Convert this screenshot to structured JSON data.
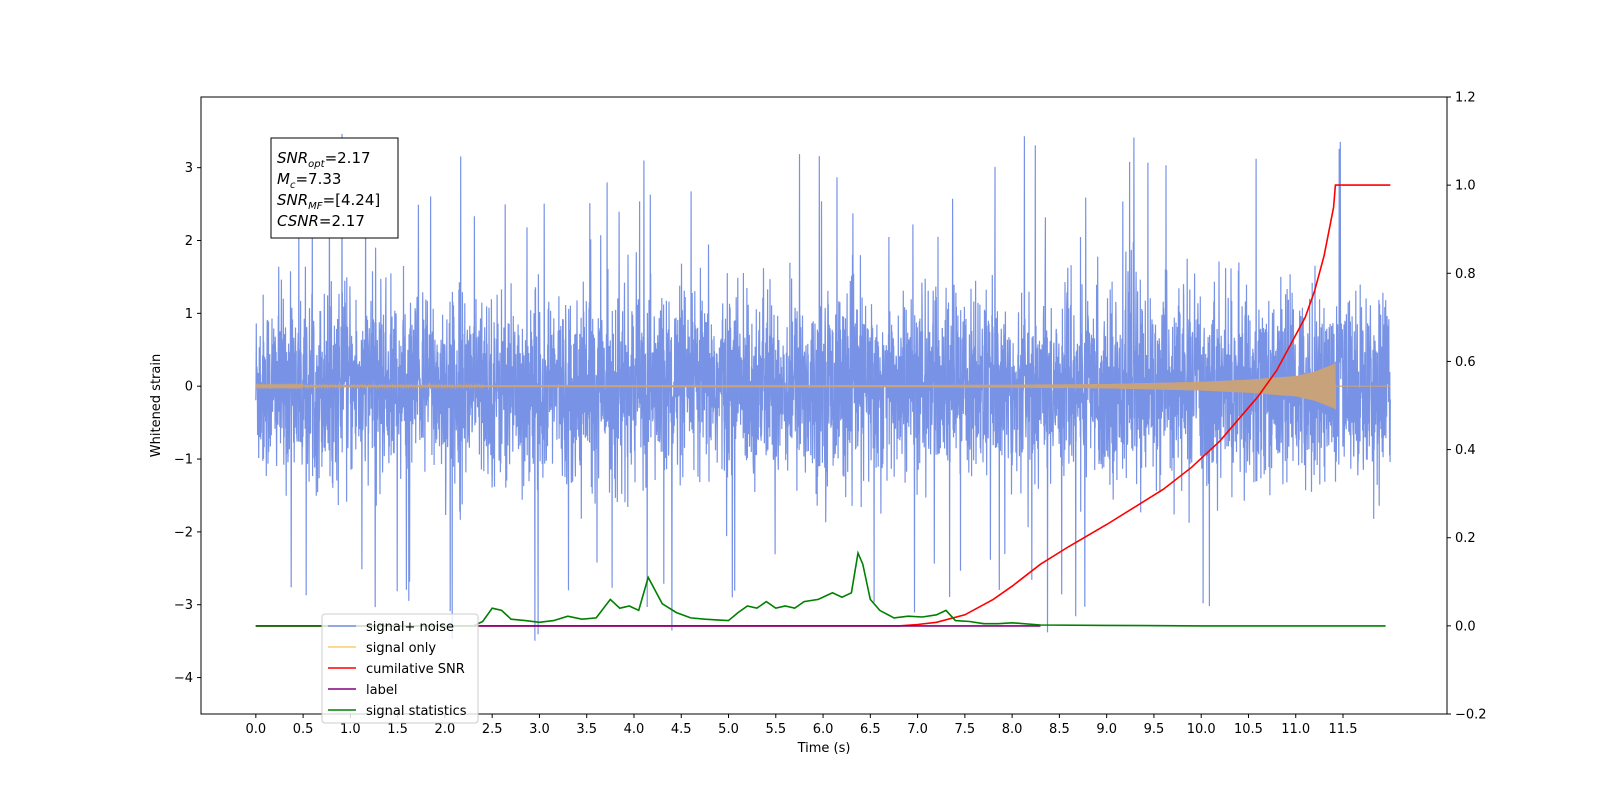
{
  "chart_data": {
    "type": "line",
    "title": "",
    "xlabel": "Time (s)",
    "ylabel": "Whitened strain",
    "ylabel_right": "",
    "xlim": [
      -0.58,
      12.6
    ],
    "ylim": [
      -4.5,
      3.97
    ],
    "ylim_right": [
      -0.2,
      1.2
    ],
    "x_ticks": [
      0.0,
      0.5,
      1.0,
      1.5,
      2.0,
      2.5,
      3.0,
      3.5,
      4.0,
      4.5,
      5.0,
      5.5,
      6.0,
      6.5,
      7.0,
      7.5,
      8.0,
      8.5,
      9.0,
      9.5,
      10.0,
      10.5,
      11.0,
      11.5
    ],
    "x_tick_labels": [
      "0.0",
      "0.5",
      "1.0",
      "1.5",
      "2.0",
      "2.5",
      "3.0",
      "3.5",
      "4.0",
      "4.5",
      "5.0",
      "5.5",
      "6.0",
      "6.5",
      "7.0",
      "7.5",
      "8.0",
      "8.5",
      "9.0",
      "9.5",
      "10.0",
      "10.5",
      "11.0",
      "11.5"
    ],
    "y_ticks": [
      -4,
      -3,
      -2,
      -1,
      0,
      1,
      2,
      3
    ],
    "y_tick_labels": [
      "−4",
      "−3",
      "−2",
      "−1",
      "0",
      "1",
      "2",
      "3"
    ],
    "y_ticks_right": [
      -0.2,
      0.0,
      0.2,
      0.4,
      0.6,
      0.8,
      1.0,
      1.2
    ],
    "y_tick_labels_right": [
      "−0.2",
      "0.0",
      "0.2",
      "0.4",
      "0.6",
      "0.8",
      "1.0",
      "1.2"
    ],
    "grid": false,
    "legend_position": "lower-left",
    "annotation": [
      {
        "base": "SNR",
        "sub": "opt",
        "rest": "=2.17"
      },
      {
        "base": "M",
        "sub": "c",
        "rest": "=7.33"
      },
      {
        "base": "SNR",
        "sub": "MF",
        "rest": "=[4.24]"
      },
      {
        "base": "CSNR",
        "sub": "",
        "rest": "=2.17"
      }
    ],
    "series": [
      {
        "name": "signal+ noise",
        "axis": "left",
        "color": "#7893e6",
        "kind": "noise",
        "x_range": [
          0.0,
          12.0
        ],
        "typical_amplitude": [
          -1.5,
          1.6
        ],
        "extreme_min": -4.1,
        "extreme_max": 3.6
      },
      {
        "name": "signal only",
        "axis": "left",
        "color": "#ffc86e",
        "kind": "chirp",
        "x_range": [
          0.0,
          11.42
        ],
        "envelope": {
          "x": [
            0,
            7.0,
            8.0,
            9.0,
            10.0,
            10.5,
            11.0,
            11.2,
            11.4,
            11.42
          ],
          "y": [
            0.01,
            0.015,
            0.02,
            0.03,
            0.06,
            0.09,
            0.14,
            0.2,
            0.3,
            0.32
          ]
        }
      },
      {
        "name": "cumilative SNR",
        "axis": "right",
        "color": "#ff0000",
        "x": [
          0.0,
          6.8,
          7.0,
          7.2,
          7.5,
          7.8,
          8.0,
          8.3,
          8.6,
          9.0,
          9.3,
          9.6,
          9.9,
          10.2,
          10.4,
          10.6,
          10.8,
          11.0,
          11.1,
          11.2,
          11.3,
          11.4,
          11.42,
          11.5,
          11.6,
          11.8,
          12.0
        ],
        "y": [
          0.0,
          0.0,
          0.003,
          0.008,
          0.025,
          0.06,
          0.09,
          0.14,
          0.18,
          0.23,
          0.27,
          0.31,
          0.36,
          0.42,
          0.47,
          0.52,
          0.58,
          0.66,
          0.7,
          0.76,
          0.84,
          0.95,
          1.0,
          1.0,
          1.0,
          1.0,
          1.0
        ]
      },
      {
        "name": "label",
        "axis": "right",
        "color": "#800080",
        "x": [
          0.0,
          8.3
        ],
        "y": [
          0.0,
          0.0
        ]
      },
      {
        "name": "signal statistics",
        "axis": "right",
        "color": "#008000",
        "x": [
          0.0,
          2.3,
          2.4,
          2.5,
          2.6,
          2.7,
          2.85,
          3.0,
          3.15,
          3.3,
          3.45,
          3.6,
          3.75,
          3.85,
          3.95,
          4.05,
          4.15,
          4.3,
          4.45,
          4.6,
          4.75,
          4.9,
          5.0,
          5.1,
          5.2,
          5.3,
          5.4,
          5.5,
          5.6,
          5.7,
          5.8,
          5.95,
          6.1,
          6.2,
          6.3,
          6.37,
          6.42,
          6.5,
          6.6,
          6.75,
          6.9,
          7.05,
          7.2,
          7.3,
          7.4,
          7.55,
          7.7,
          7.85,
          8.0,
          8.3,
          9.0,
          10.0,
          11.0,
          11.95
        ],
        "y": [
          0.0,
          0.0,
          0.01,
          0.04,
          0.035,
          0.015,
          0.012,
          0.008,
          0.012,
          0.022,
          0.015,
          0.018,
          0.06,
          0.04,
          0.045,
          0.035,
          0.11,
          0.05,
          0.03,
          0.018,
          0.015,
          0.013,
          0.012,
          0.03,
          0.045,
          0.04,
          0.055,
          0.04,
          0.045,
          0.04,
          0.055,
          0.06,
          0.075,
          0.065,
          0.075,
          0.165,
          0.14,
          0.06,
          0.035,
          0.018,
          0.022,
          0.02,
          0.025,
          0.035,
          0.012,
          0.01,
          0.005,
          0.005,
          0.007,
          0.002,
          0.001,
          0.0,
          0.0,
          0.0
        ]
      }
    ]
  }
}
